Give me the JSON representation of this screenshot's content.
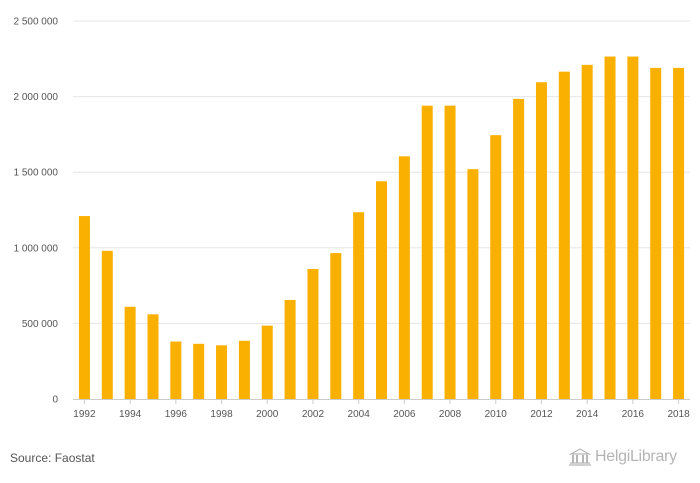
{
  "chart_data": {
    "type": "bar",
    "categories": [
      "1992",
      "1993",
      "1994",
      "1995",
      "1996",
      "1997",
      "1998",
      "1999",
      "2000",
      "2001",
      "2002",
      "2003",
      "2004",
      "2005",
      "2006",
      "2007",
      "2008",
      "2009",
      "2010",
      "2011",
      "2012",
      "2013",
      "2014",
      "2015",
      "2016",
      "2017",
      "2018"
    ],
    "x_tick_labels": [
      "1992",
      "1994",
      "1996",
      "1998",
      "2000",
      "2002",
      "2004",
      "2006",
      "2008",
      "2010",
      "2012",
      "2014",
      "2016",
      "2018"
    ],
    "values": [
      1210000,
      980000,
      610000,
      560000,
      380000,
      365000,
      355000,
      385000,
      485000,
      655000,
      860000,
      965000,
      1235000,
      1440000,
      1605000,
      1940000,
      1940000,
      1520000,
      1745000,
      1985000,
      2095000,
      2165000,
      2210000,
      2265000,
      2265000,
      2190000,
      2190000
    ],
    "y_ticks": [
      0,
      500000,
      1000000,
      1500000,
      2000000,
      2500000
    ],
    "y_tick_labels": [
      "0",
      "500 000",
      "1 000 000",
      "1 500 000",
      "2 000 000",
      "2 500 000"
    ],
    "ylim": [
      0,
      2500000
    ],
    "grid": true,
    "legend": "none",
    "bar_color": "#fab000",
    "title": "",
    "xlabel": "",
    "ylabel": ""
  },
  "footer": {
    "source": "Source: Faostat",
    "logo_name": "HelgiLibrary"
  },
  "colors": {
    "grid": "#e6e6e6",
    "axis": "#cccccc",
    "text": "#555555"
  }
}
